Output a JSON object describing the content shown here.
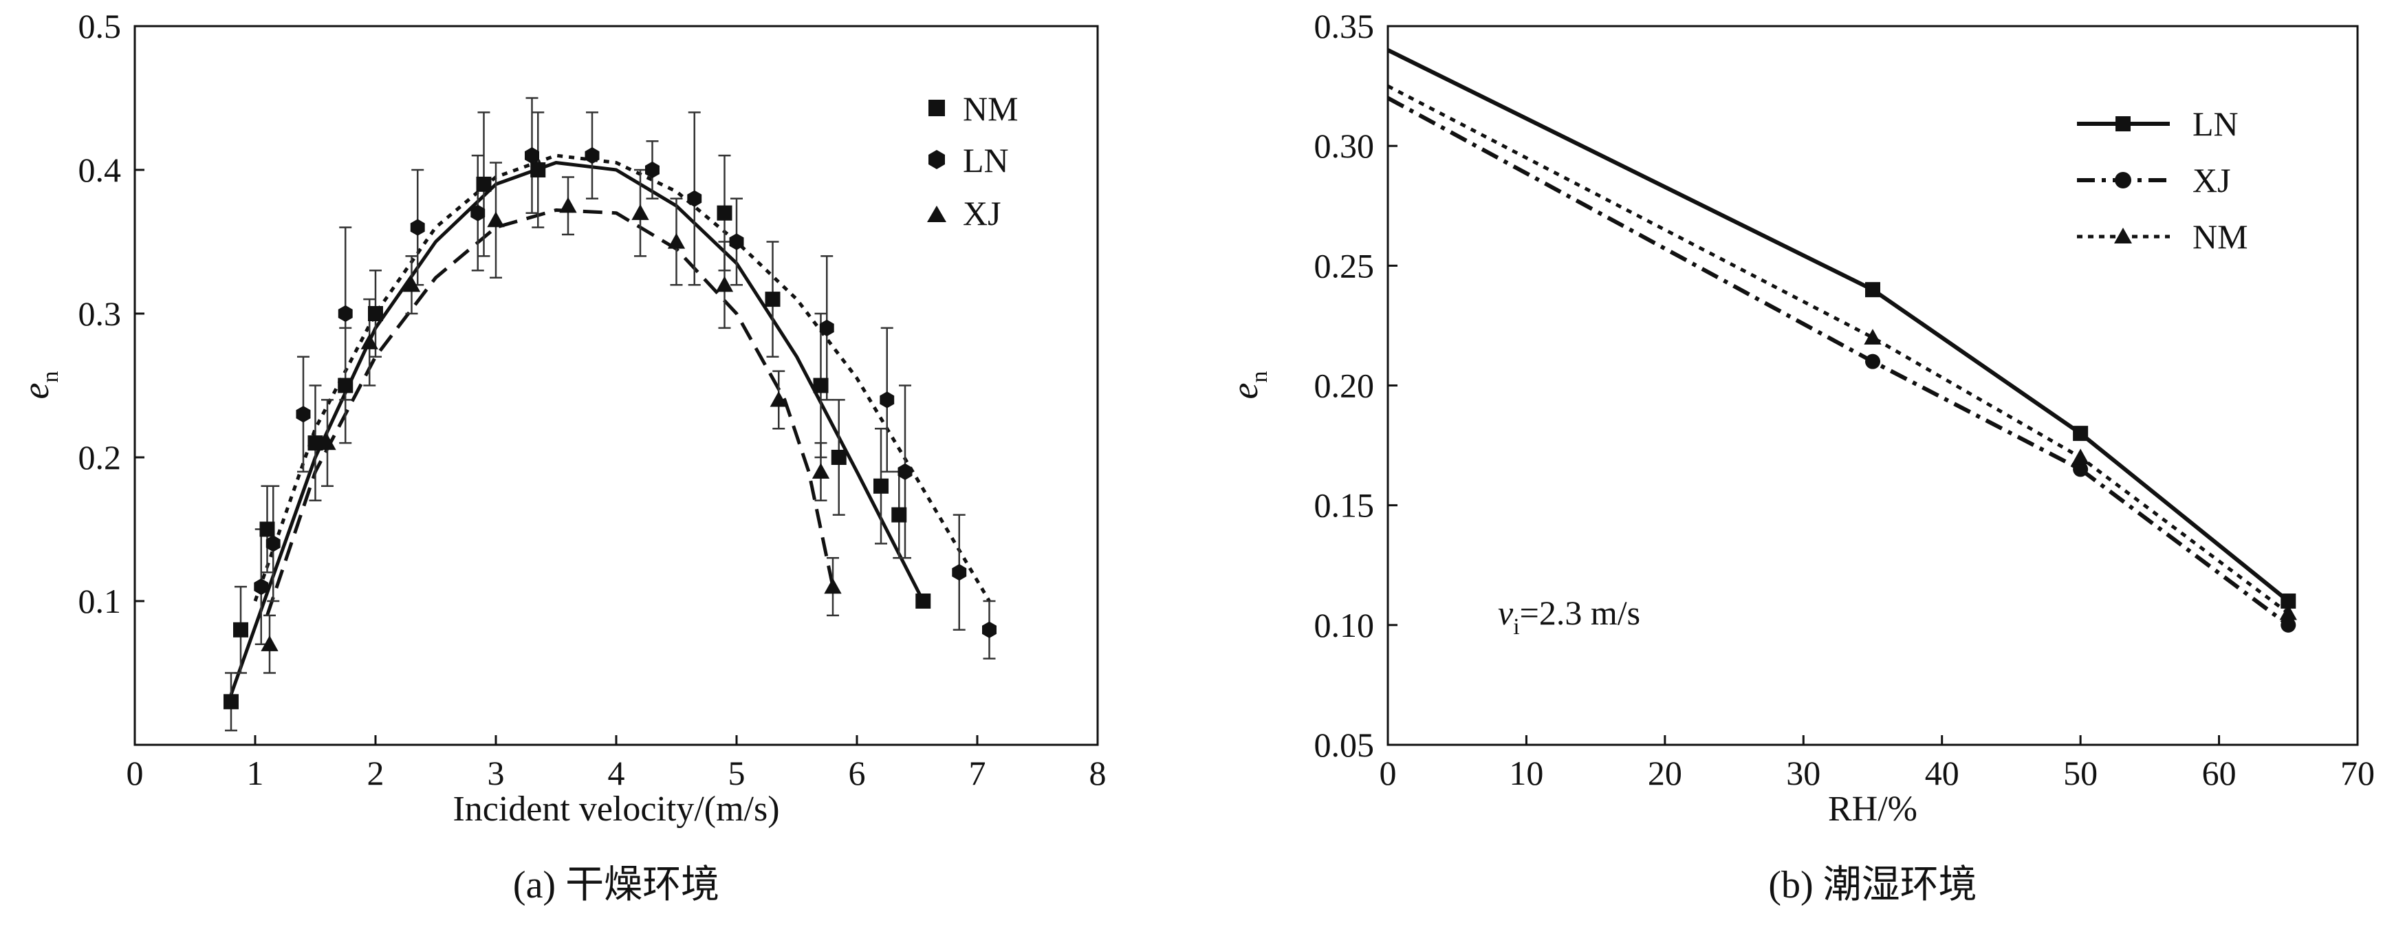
{
  "chart_data": [
    {
      "type": "scatter",
      "panel": "a",
      "caption": "(a) 干燥环境",
      "xlabel": "Incident velocity/(m/s)",
      "ylabel_main": "e",
      "ylabel_sub": "n",
      "xlim": [
        0,
        8
      ],
      "ylim": [
        0,
        0.5
      ],
      "xticks": [
        "0",
        "1",
        "2",
        "3",
        "4",
        "5",
        "6",
        "7",
        "8"
      ],
      "yticks": [
        "0.1",
        "0.2",
        "0.3",
        "0.4",
        "0.5"
      ],
      "legend_position": "top-right",
      "series": [
        {
          "name": "NM",
          "marker": "square",
          "fit_style": "solid",
          "x": [
            0.8,
            0.88,
            1.1,
            1.5,
            1.75,
            2.0,
            2.9,
            3.35,
            4.9,
            5.3,
            5.7,
            5.85,
            6.2,
            6.35,
            6.55
          ],
          "y": [
            0.03,
            0.08,
            0.15,
            0.21,
            0.25,
            0.3,
            0.39,
            0.4,
            0.37,
            0.31,
            0.25,
            0.2,
            0.18,
            0.16,
            0.1
          ],
          "err": [
            0.02,
            0.03,
            0.03,
            0.04,
            0.04,
            0.03,
            0.05,
            0.04,
            0.04,
            0.04,
            0.05,
            0.04,
            0.04,
            0.03,
            0.0
          ],
          "fit": [
            [
              0.8,
              0.035
            ],
            [
              1.5,
              0.2
            ],
            [
              2.0,
              0.29
            ],
            [
              2.5,
              0.35
            ],
            [
              3.0,
              0.39
            ],
            [
              3.5,
              0.405
            ],
            [
              4.0,
              0.4
            ],
            [
              4.5,
              0.375
            ],
            [
              5.0,
              0.335
            ],
            [
              5.5,
              0.27
            ],
            [
              6.0,
              0.19
            ],
            [
              6.55,
              0.1
            ]
          ]
        },
        {
          "name": "LN",
          "marker": "hexagon",
          "fit_style": "dotted",
          "x": [
            1.05,
            1.15,
            1.4,
            1.75,
            2.35,
            2.85,
            3.3,
            3.8,
            4.3,
            4.65,
            5.0,
            5.75,
            6.25,
            6.4,
            6.85,
            7.1
          ],
          "y": [
            0.11,
            0.14,
            0.23,
            0.3,
            0.36,
            0.37,
            0.41,
            0.41,
            0.4,
            0.38,
            0.35,
            0.29,
            0.24,
            0.19,
            0.12,
            0.08
          ],
          "err": [
            0.04,
            0.04,
            0.04,
            0.06,
            0.04,
            0.04,
            0.04,
            0.03,
            0.02,
            0.06,
            0.03,
            0.05,
            0.05,
            0.06,
            0.04,
            0.02
          ],
          "fit": [
            [
              1.0,
              0.1
            ],
            [
              1.5,
              0.22
            ],
            [
              2.0,
              0.3
            ],
            [
              2.5,
              0.36
            ],
            [
              3.0,
              0.395
            ],
            [
              3.5,
              0.41
            ],
            [
              4.0,
              0.405
            ],
            [
              4.5,
              0.385
            ],
            [
              5.0,
              0.35
            ],
            [
              5.5,
              0.31
            ],
            [
              6.0,
              0.255
            ],
            [
              6.5,
              0.185
            ],
            [
              7.1,
              0.1
            ]
          ]
        },
        {
          "name": "XJ",
          "marker": "triangle",
          "fit_style": "dashed",
          "x": [
            1.12,
            1.6,
            1.95,
            2.3,
            3.0,
            3.6,
            4.2,
            4.5,
            4.9,
            5.35,
            5.7,
            5.8
          ],
          "y": [
            0.07,
            0.21,
            0.28,
            0.32,
            0.365,
            0.375,
            0.37,
            0.35,
            0.32,
            0.24,
            0.19,
            0.11
          ],
          "err": [
            0.02,
            0.03,
            0.03,
            0.02,
            0.04,
            0.02,
            0.03,
            0.03,
            0.03,
            0.02,
            0.02,
            0.02
          ],
          "fit": [
            [
              1.1,
              0.09
            ],
            [
              1.5,
              0.19
            ],
            [
              2.0,
              0.27
            ],
            [
              2.5,
              0.325
            ],
            [
              3.0,
              0.36
            ],
            [
              3.5,
              0.372
            ],
            [
              4.0,
              0.37
            ],
            [
              4.5,
              0.345
            ],
            [
              5.0,
              0.3
            ],
            [
              5.4,
              0.24
            ],
            [
              5.6,
              0.19
            ],
            [
              5.8,
              0.11
            ]
          ]
        }
      ]
    },
    {
      "type": "line",
      "panel": "b",
      "caption": "(b) 潮湿环境",
      "xlabel": "RH/%",
      "ylabel_main": "e",
      "ylabel_sub": "n",
      "xlim": [
        0,
        70
      ],
      "ylim": [
        0.05,
        0.35
      ],
      "xticks": [
        "0",
        "10",
        "20",
        "30",
        "40",
        "50",
        "60",
        "70"
      ],
      "yticks": [
        "0.05",
        "0.10",
        "0.15",
        "0.20",
        "0.25",
        "0.30",
        "0.35"
      ],
      "legend_position": "top-right",
      "annotation": {
        "main": "v",
        "sub": "i",
        "rest": "=2.3 m/s"
      },
      "series": [
        {
          "name": "LN",
          "marker": "square",
          "line_style": "solid",
          "x": [
            0,
            35,
            50,
            65
          ],
          "y": [
            0.34,
            0.24,
            0.18,
            0.11
          ]
        },
        {
          "name": "XJ",
          "marker": "circle",
          "line_style": "dashdot",
          "x": [
            0,
            35,
            50,
            65
          ],
          "y": [
            0.32,
            0.21,
            0.165,
            0.1
          ]
        },
        {
          "name": "NM",
          "marker": "triangle",
          "line_style": "dotted",
          "x": [
            0,
            35,
            50,
            65
          ],
          "y": [
            0.325,
            0.22,
            0.17,
            0.105
          ]
        }
      ]
    }
  ]
}
